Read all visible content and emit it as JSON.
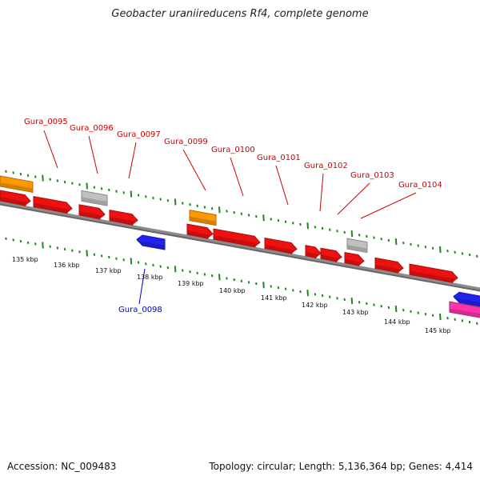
{
  "title": "Geobacter uraniireducens Rf4, complete genome",
  "footer": {
    "accession": "Accession: NC_009483",
    "summary": "Topology: circular; Length: 5,136,364 bp; Genes: 4,414"
  },
  "colors": {
    "backbone": "#8c8c8c",
    "ruler": "#1a8a1a",
    "forward_label": "#cc0000",
    "reverse_label": "#0000cc",
    "cds_red": "#ee1111",
    "cds_orange": "#ff9900",
    "cds_gray": "#c0c0c0",
    "cds_blue": "#2222ee",
    "cds_pink": "#ff33aa"
  },
  "ruler_labels": [
    "135 kbp",
    "136 kbp",
    "137 kbp",
    "138 kbp",
    "139 kbp",
    "140 kbp",
    "141 kbp",
    "142 kbp",
    "143 kbp",
    "144 kbp",
    "145 kbp"
  ],
  "gene_labels": [
    {
      "text": "Gura_0095",
      "strand": "+"
    },
    {
      "text": "Gura_0096",
      "strand": "+"
    },
    {
      "text": "Gura_0097",
      "strand": "+"
    },
    {
      "text": "Gura_0099",
      "strand": "+"
    },
    {
      "text": "Gura_0100",
      "strand": "+"
    },
    {
      "text": "Gura_0101",
      "strand": "+"
    },
    {
      "text": "Gura_0102",
      "strand": "+"
    },
    {
      "text": "Gura_0103",
      "strand": "+"
    },
    {
      "text": "Gura_0104",
      "strand": "+"
    },
    {
      "text": "Gura_0098",
      "strand": "-"
    }
  ],
  "features": [
    {
      "type": "orange",
      "strand": "+",
      "arrow": false
    },
    {
      "type": "red",
      "strand": "+",
      "arrow": true
    },
    {
      "type": "red",
      "strand": "+",
      "arrow": true
    },
    {
      "type": "gray",
      "strand": "+",
      "arrow": false
    },
    {
      "type": "red",
      "strand": "+",
      "arrow": true
    },
    {
      "type": "red",
      "strand": "+",
      "arrow": true
    },
    {
      "type": "blue",
      "strand": "-",
      "arrow": true
    },
    {
      "type": "orange",
      "strand": "+",
      "arrow": false
    },
    {
      "type": "red",
      "strand": "+",
      "arrow": true
    },
    {
      "type": "red",
      "strand": "+",
      "arrow": true
    },
    {
      "type": "red",
      "strand": "+",
      "arrow": true
    },
    {
      "type": "red",
      "strand": "+",
      "arrow": true
    },
    {
      "type": "red",
      "strand": "+",
      "arrow": true
    },
    {
      "type": "gray",
      "strand": "+",
      "arrow": false
    },
    {
      "type": "red",
      "strand": "+",
      "arrow": true
    },
    {
      "type": "red",
      "strand": "+",
      "arrow": true
    },
    {
      "type": "red",
      "strand": "+",
      "arrow": true
    },
    {
      "type": "blue",
      "strand": "-",
      "arrow": true
    },
    {
      "type": "pink",
      "strand": "-",
      "arrow": false
    }
  ]
}
